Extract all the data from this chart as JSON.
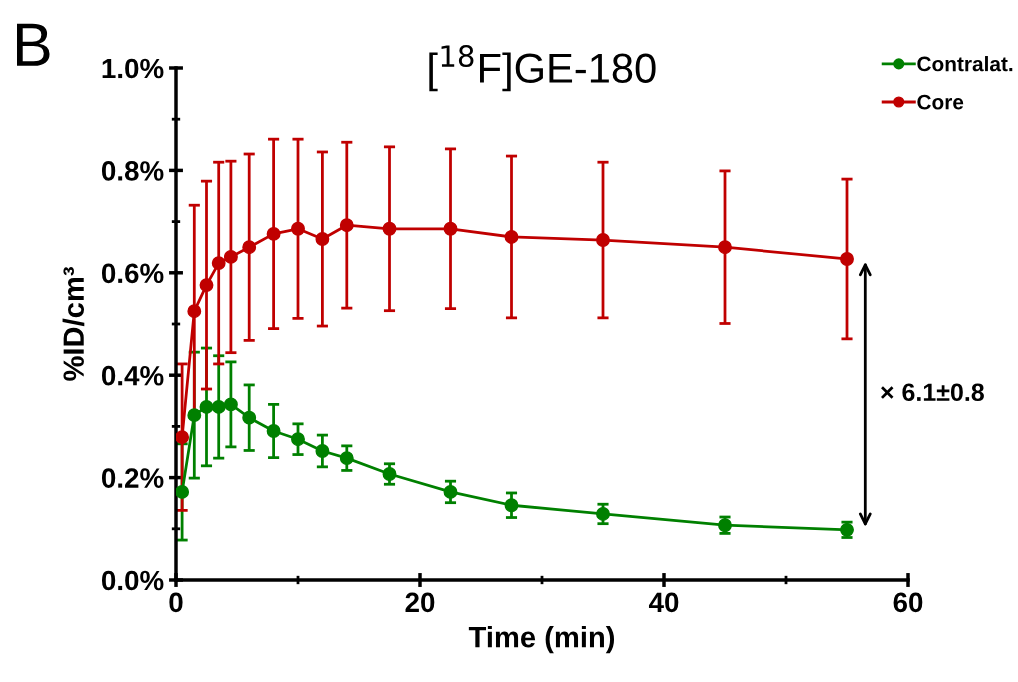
{
  "chart_data": {
    "type": "line",
    "title": "[$^{18}$F]GE-180",
    "xlabel": "Time (min)",
    "ylabel": "%ID/cm³",
    "annotations": [
      "B",
      "× 6.1±0.8"
    ],
    "x": [
      0.5,
      1.5,
      2.5,
      3.5,
      4.5,
      6,
      8,
      10,
      12,
      14,
      17.5,
      22.5,
      27.5,
      35,
      45,
      55
    ],
    "series": [
      {
        "name": "Contralat.",
        "color": "#008000",
        "values": [
          0.172,
          0.322,
          0.338,
          0.338,
          0.343,
          0.317,
          0.291,
          0.275,
          0.252,
          0.238,
          0.207,
          0.172,
          0.146,
          0.129,
          0.107,
          0.098
        ],
        "errors": [
          0.094,
          0.123,
          0.115,
          0.1,
          0.083,
          0.064,
          0.052,
          0.03,
          0.031,
          0.024,
          0.02,
          0.021,
          0.024,
          0.019,
          0.016,
          0.015
        ]
      },
      {
        "name": "Core",
        "color": "#c00000",
        "values": [
          0.279,
          0.525,
          0.576,
          0.619,
          0.631,
          0.65,
          0.676,
          0.686,
          0.666,
          0.693,
          0.686,
          0.686,
          0.67,
          0.664,
          0.65,
          0.627
        ],
        "errors": [
          0.143,
          0.207,
          0.203,
          0.197,
          0.187,
          0.182,
          0.185,
          0.175,
          0.17,
          0.162,
          0.16,
          0.156,
          0.158,
          0.152,
          0.149,
          0.156
        ]
      }
    ],
    "xlim": [
      0,
      60
    ],
    "xticks": [
      0,
      20,
      40,
      60
    ],
    "ylim": [
      0,
      1.0
    ],
    "yticks": [
      {
        "value": 0,
        "label": "0.0%"
      },
      {
        "value": 0.2,
        "label": "0.2%"
      },
      {
        "value": 0.4,
        "label": "0.4%"
      },
      {
        "value": 0.6,
        "label": "0.6%"
      },
      {
        "value": 0.8,
        "label": "0.8%"
      },
      {
        "value": 1.0,
        "label": "1.0%"
      }
    ],
    "marker": "circle",
    "line_style": "solid",
    "legend": "top right",
    "grid": false
  }
}
